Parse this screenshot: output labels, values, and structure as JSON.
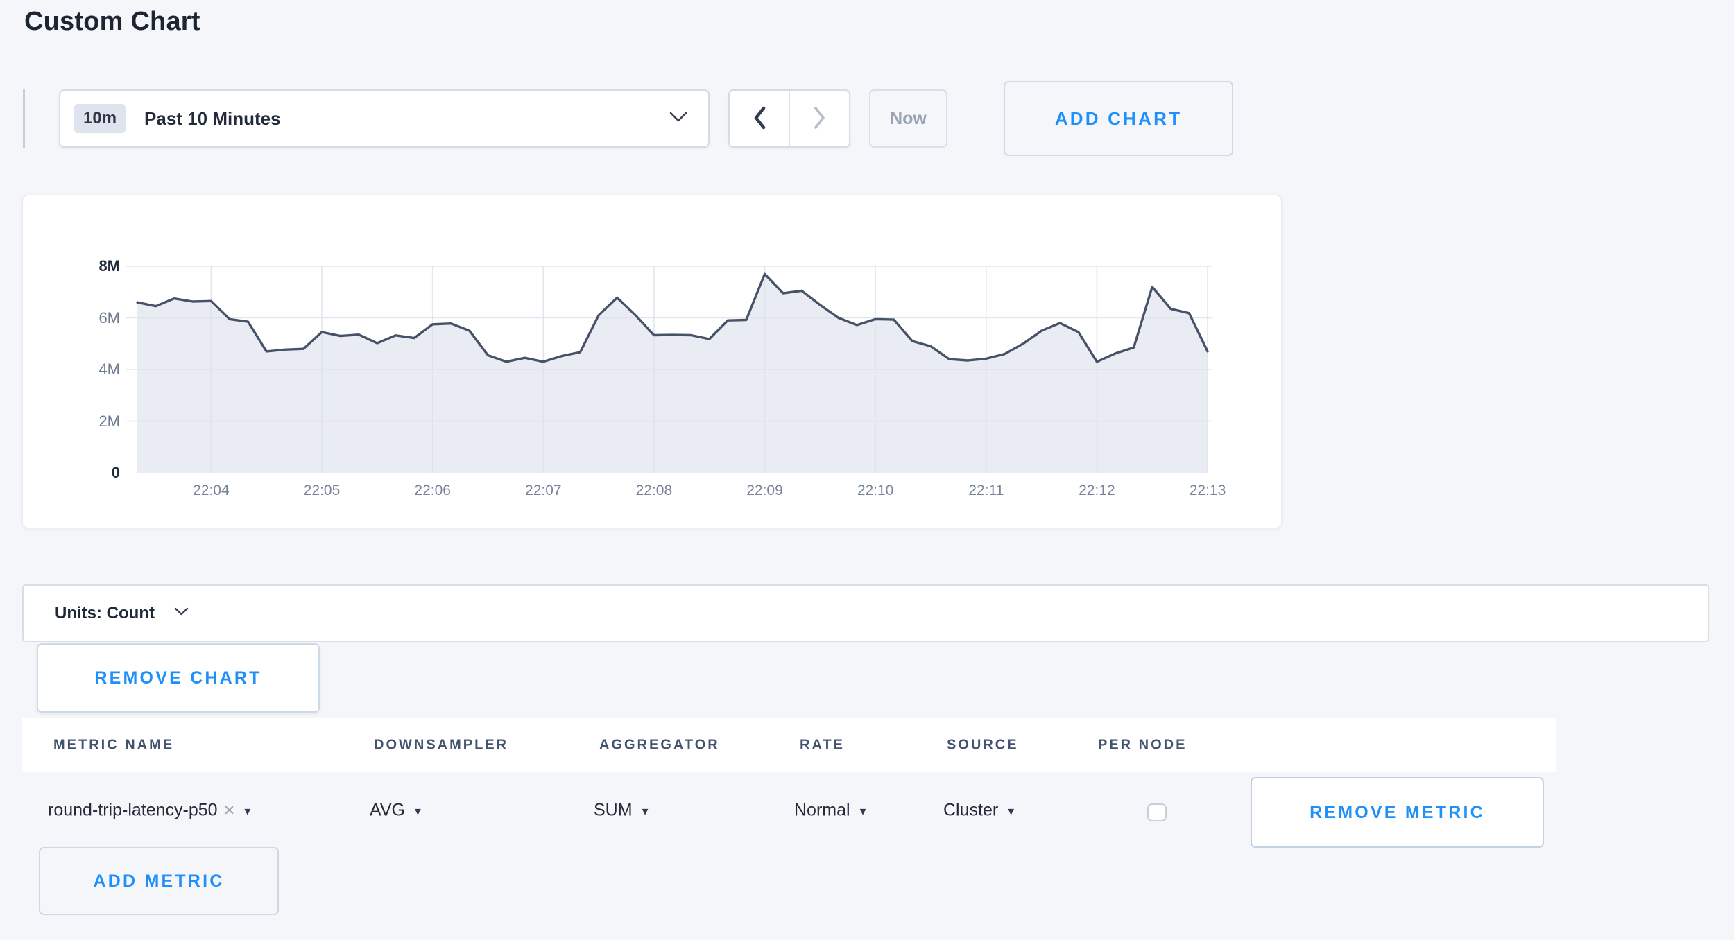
{
  "page": {
    "title": "Custom Chart"
  },
  "colors": {
    "accent_blue": "#1f8ffa",
    "page_background": "#f4f6fa",
    "chart_line": "#475269",
    "chart_fill": "#e9ecf2",
    "grid_line": "#dde2ec"
  },
  "icons": {
    "caret_down": "▼",
    "close": "×"
  },
  "toolbar": {
    "time_window_badge": "10m",
    "time_window_label": "Past 10 Minutes",
    "now_label": "Now",
    "add_chart_label": "ADD CHART"
  },
  "chart_card": {
    "units_label": "Units: Count",
    "remove_chart_label": "REMOVE CHART"
  },
  "chart_data": {
    "type": "area",
    "title": "",
    "xlabel": "",
    "ylabel": "Count",
    "ymax_millions": 8,
    "ylim": [
      0,
      8000000
    ],
    "grid": true,
    "legend": "none",
    "sample_interval_seconds": 10,
    "x_start_time": "22:03:20",
    "x_ticks": [
      "22:04",
      "22:05",
      "22:06",
      "22:07",
      "22:08",
      "22:09",
      "22:10",
      "22:11",
      "22:12",
      "22:13"
    ],
    "first_tick_index": 4,
    "tick_every": 6,
    "y_ticks": [
      {
        "label": "0",
        "value": 0,
        "emphasis": true
      },
      {
        "label": "2M",
        "value": 2,
        "emphasis": false
      },
      {
        "label": "4M",
        "value": 4,
        "emphasis": false
      },
      {
        "label": "6M",
        "value": 6,
        "emphasis": false
      },
      {
        "label": "8M",
        "value": 8,
        "emphasis": true
      }
    ],
    "series": [
      {
        "name": "round-trip-latency-p50",
        "values_millions": [
          6.6,
          6.45,
          6.75,
          6.63,
          6.65,
          5.95,
          5.85,
          4.7,
          4.77,
          4.8,
          5.45,
          5.3,
          5.35,
          5.02,
          5.32,
          5.22,
          5.75,
          5.78,
          5.5,
          4.55,
          4.3,
          4.45,
          4.3,
          4.52,
          4.67,
          6.1,
          6.78,
          6.1,
          5.33,
          5.34,
          5.33,
          5.18,
          5.9,
          5.92,
          7.7,
          6.95,
          7.05,
          6.5,
          6.0,
          5.72,
          5.95,
          5.93,
          5.1,
          4.9,
          4.4,
          4.35,
          4.42,
          4.6,
          5.0,
          5.5,
          5.8,
          5.45,
          4.3,
          4.62,
          4.85,
          7.2,
          6.35,
          6.18,
          4.7
        ]
      }
    ]
  },
  "metric_table": {
    "columns": [
      "METRIC NAME",
      "DOWNSAMPLER",
      "AGGREGATOR",
      "RATE",
      "SOURCE",
      "PER NODE"
    ],
    "rows": [
      {
        "metric_name": "round-trip-latency-p50",
        "downsampler": "AVG",
        "aggregator": "SUM",
        "rate": "Normal",
        "source": "Cluster",
        "per_node_checked": false,
        "remove_label": "REMOVE METRIC"
      }
    ],
    "add_metric_label": "ADD METRIC"
  }
}
